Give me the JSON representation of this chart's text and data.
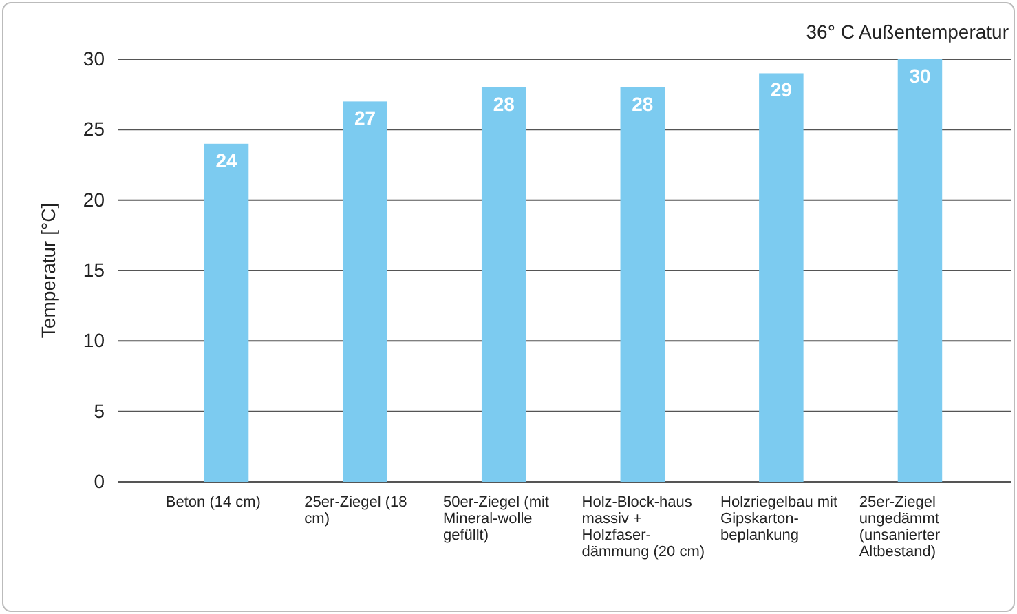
{
  "chart_data": {
    "type": "bar",
    "ylabel": "Temperatur [°C]",
    "categories": [
      "Beton (14 cm)",
      "25er-Ziegel (18 cm)",
      "50er-Ziegel (mit Mineral-wolle gefüllt)",
      "Holz-Block-haus massiv + Holzfaser-dämmung (20 cm)",
      "Holzriegelbau mit Gipskarton-beplankung",
      "25er-Ziegel ungedämmt (unsanierter Altbestand)"
    ],
    "values": [
      24,
      27,
      28,
      28,
      29,
      30
    ],
    "data_labels": true,
    "color": "#7ccbf0",
    "ylim": [
      0,
      30
    ],
    "yticks": [
      0,
      5,
      10,
      15,
      20,
      25,
      30
    ],
    "grid": "y",
    "annotations": [
      "36° C Außentemperatur"
    ]
  }
}
